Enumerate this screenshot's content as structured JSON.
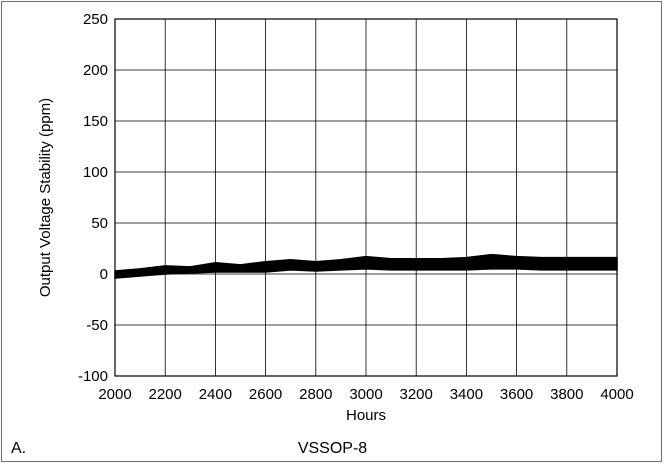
{
  "chart_data": {
    "type": "line",
    "title": "",
    "subtitle": "VSSOP-8",
    "panel_label": "A.",
    "xlabel": "Hours",
    "ylabel": "Output Voltage Stability (ppm)",
    "xlim": [
      2000,
      4000
    ],
    "ylim": [
      -100,
      250
    ],
    "x_ticks": [
      2000,
      2200,
      2400,
      2600,
      2800,
      3000,
      3200,
      3400,
      3600,
      3800,
      4000
    ],
    "y_ticks": [
      -100,
      -50,
      0,
      50,
      100,
      150,
      200,
      250
    ],
    "grid": true,
    "line_color": "#000000",
    "series": [
      {
        "band": true,
        "x": [
          2000,
          2100,
          2200,
          2300,
          2400,
          2500,
          2600,
          2700,
          2800,
          2900,
          3000,
          3100,
          3200,
          3300,
          3400,
          3500,
          3600,
          3700,
          3800,
          3900,
          4000
        ],
        "y_min": [
          -4,
          -2,
          0,
          1,
          2,
          2,
          2,
          4,
          3,
          4,
          5,
          4,
          4,
          4,
          4,
          5,
          5,
          4,
          4,
          4,
          4
        ],
        "y_max": [
          3,
          5,
          8,
          7,
          11,
          9,
          12,
          14,
          12,
          14,
          17,
          15,
          15,
          15,
          16,
          19,
          17,
          16,
          16,
          16,
          16
        ]
      }
    ]
  }
}
